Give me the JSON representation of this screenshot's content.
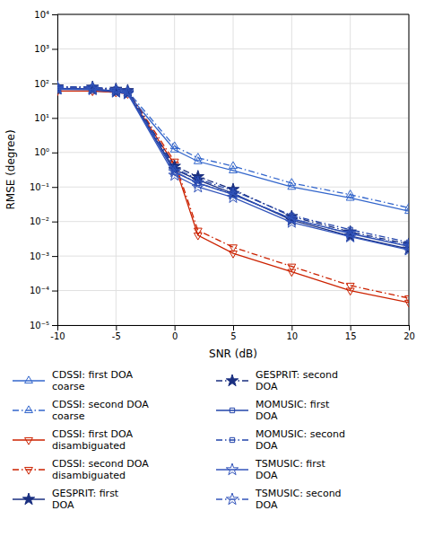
{
  "chart_data": {
    "type": "line",
    "x_label": "SNR (dB)",
    "y_label": "RMSE (degree)",
    "x": [
      -10,
      -7,
      -5,
      -4,
      0,
      2,
      5,
      10,
      15,
      20
    ],
    "series": [
      {
        "name": "CDSSI: first DOA\ncoarse",
        "color": "#3366CC",
        "line_style": "solid",
        "marker": "triangle-up-open",
        "values": [
          60,
          60,
          55,
          50,
          1.2,
          0.55,
          0.3,
          0.1,
          0.048,
          0.02
        ]
      },
      {
        "name": "CDSSI: second DOA\ncoarse",
        "color": "#3366CC",
        "line_style": "dashdot",
        "marker": "triangle-up-open",
        "values": [
          75,
          73,
          65,
          60,
          1.5,
          0.7,
          0.4,
          0.13,
          0.06,
          0.025
        ]
      },
      {
        "name": "CDSSI: first DOA\ndisambiguated",
        "color": "#CC2200",
        "line_style": "solid",
        "marker": "triangle-down-open",
        "values": [
          60,
          60,
          55,
          50,
          0.45,
          0.004,
          0.0012,
          0.00035,
          0.0001,
          4.5e-05
        ]
      },
      {
        "name": "CDSSI: second DOA\ndisambiguated",
        "color": "#CC2200",
        "line_style": "dashdot",
        "marker": "triangle-down-open",
        "values": [
          75,
          73,
          65,
          60,
          0.55,
          0.0055,
          0.0018,
          0.0005,
          0.00014,
          6e-05
        ]
      },
      {
        "name": "GESPRIT: first\nDOA",
        "color": "#1a2f80",
        "line_style": "solid",
        "marker": "star",
        "values": [
          70,
          68,
          58,
          52,
          0.32,
          0.16,
          0.065,
          0.011,
          0.0038,
          0.0016
        ]
      },
      {
        "name": "GESPRIT: second\nDOA",
        "color": "#1a2f80",
        "line_style": "dashdot",
        "marker": "star",
        "values": [
          80,
          78,
          68,
          62,
          0.4,
          0.2,
          0.085,
          0.014,
          0.005,
          0.0022
        ]
      },
      {
        "name": "MOMUSIC: first\nDOA",
        "color": "#2244AA",
        "line_style": "solid",
        "marker": "square-open",
        "values": [
          72,
          70,
          60,
          54,
          0.27,
          0.13,
          0.06,
          0.012,
          0.0045,
          0.0019
        ]
      },
      {
        "name": "MOMUSIC: second\nDOA",
        "color": "#2244AA",
        "line_style": "dashdot",
        "marker": "square-open",
        "values": [
          80,
          78,
          68,
          62,
          0.35,
          0.17,
          0.078,
          0.015,
          0.0058,
          0.0025
        ]
      },
      {
        "name": "TSMUSIC: first\nDOA",
        "color": "#3355BB",
        "line_style": "solid",
        "marker": "star-open",
        "values": [
          68,
          66,
          56,
          50,
          0.22,
          0.1,
          0.05,
          0.0095,
          0.0036,
          0.0015
        ]
      },
      {
        "name": "TSMUSIC: second\nDOA",
        "color": "#3355BB",
        "line_style": "dashdot",
        "marker": "star-open",
        "values": [
          75,
          73,
          63,
          57,
          0.28,
          0.13,
          0.062,
          0.012,
          0.0046,
          0.002
        ]
      }
    ],
    "xlim": [
      -10,
      20
    ],
    "xticks": [
      -10,
      -5,
      0,
      5,
      10,
      15,
      20
    ],
    "ylim": [
      1e-05,
      10000.0
    ],
    "yticks": [
      {
        "value": 1e-05,
        "label": "10⁻⁵"
      },
      {
        "value": 0.0001,
        "label": "10⁻⁴"
      },
      {
        "value": 0.001,
        "label": "10⁻³"
      },
      {
        "value": 0.01,
        "label": "10⁻²"
      },
      {
        "value": 0.1,
        "label": "10⁻¹"
      },
      {
        "value": 1,
        "label": "10⁰"
      },
      {
        "value": 10,
        "label": "10¹"
      },
      {
        "value": 100,
        "label": "10²"
      },
      {
        "value": 1000,
        "label": "10³"
      },
      {
        "value": 10000,
        "label": "10⁴"
      }
    ],
    "log": "y",
    "grid": true,
    "legend": "bottom"
  }
}
